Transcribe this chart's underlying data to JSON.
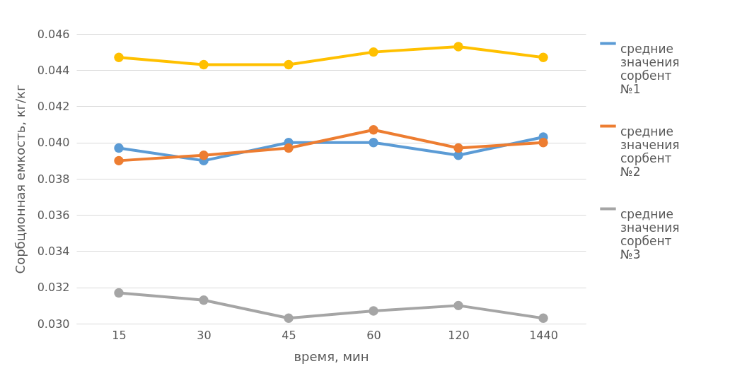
{
  "chart_data": {
    "type": "line",
    "xlabel": "время, мин",
    "ylabel": "Сорбционная емкость, кг/кг",
    "categories": [
      "15",
      "30",
      "45",
      "60",
      "120",
      "1440"
    ],
    "series": [
      {
        "name": "средние значения сорбент №1",
        "color": "#5b9bd5",
        "values": [
          0.0397,
          0.039,
          0.04,
          0.04,
          0.0393,
          0.0403
        ]
      },
      {
        "name": "средние значения сорбент №2",
        "color": "#ed7d31",
        "values": [
          0.039,
          0.0393,
          0.0397,
          0.0407,
          0.0397,
          0.04
        ]
      },
      {
        "name": "средние значения сорбент №3",
        "color": "#a5a5a5",
        "values": [
          0.0317,
          0.0313,
          0.0303,
          0.0307,
          0.031,
          0.0303
        ]
      },
      {
        "color": "#ffc000",
        "values": [
          0.0447,
          0.0443,
          0.0443,
          0.045,
          0.0453,
          0.0447
        ]
      }
    ],
    "ylim": [
      0.03,
      0.046
    ],
    "yticks": [
      {
        "value": 0.03,
        "label": "0.030"
      },
      0.032,
      0.034,
      0.036,
      0.038,
      {
        "value": 0.04,
        "label": "0.040"
      },
      0.042,
      0.044,
      0.046
    ],
    "grid": "y",
    "legend": "right",
    "marker": "circle",
    "line_style": "solid"
  }
}
